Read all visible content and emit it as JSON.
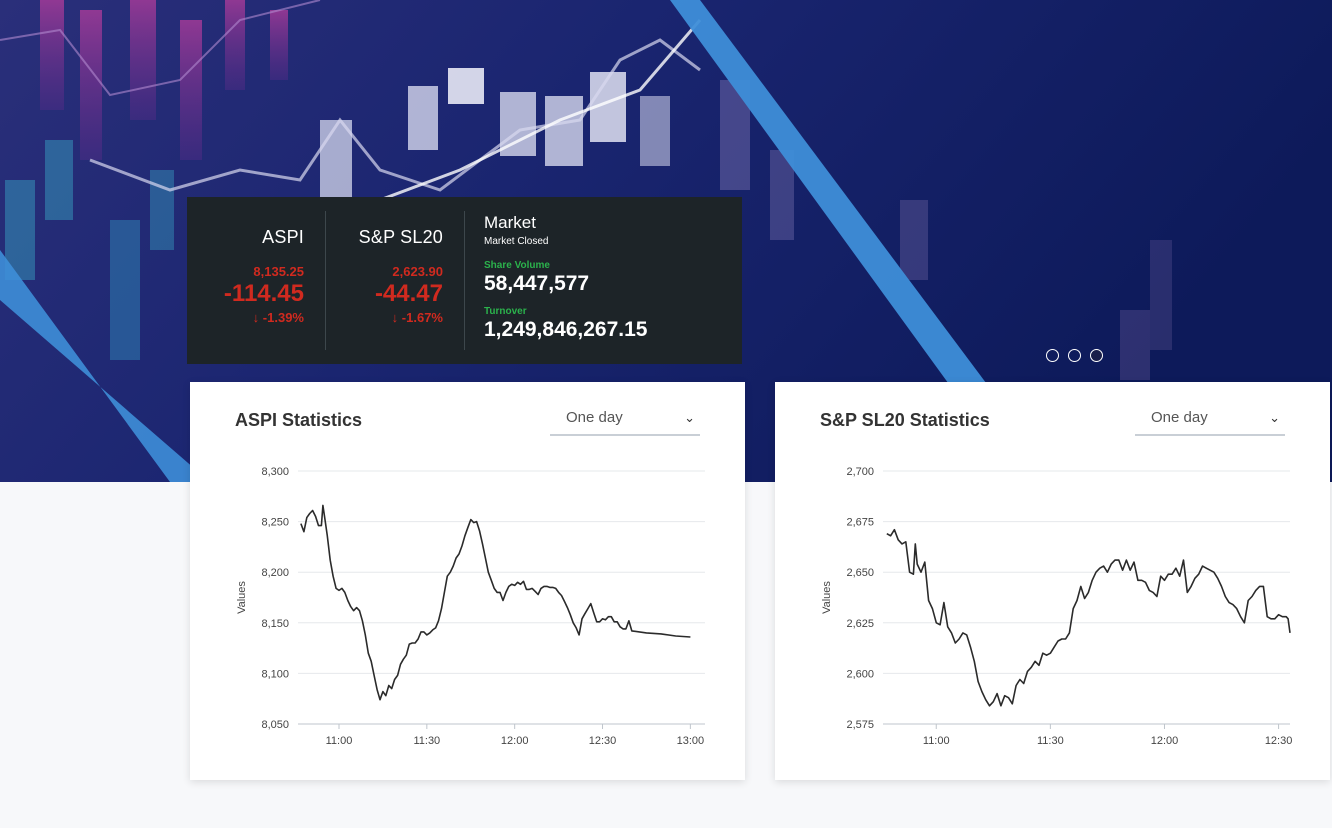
{
  "ticker": {
    "indices": [
      {
        "name": "ASPI",
        "value": "8,135.25",
        "change": "-114.45",
        "percent": "-1.39%",
        "arrow": "↓"
      },
      {
        "name": "S&P SL20",
        "value": "2,623.90",
        "change": "-44.47",
        "percent": "-1.67%",
        "arrow": "↓"
      }
    ],
    "market": {
      "title": "Market",
      "status": "Market Closed",
      "share_volume_label": "Share Volume",
      "share_volume": "58,447,577",
      "turnover_label": "Turnover",
      "turnover": "1,249,846,267.15"
    }
  },
  "colors": {
    "negative": "#d02a1f",
    "positive_label": "#2bb24c",
    "ticker_bg": "#1d2428"
  },
  "carousel": {
    "slides": 3,
    "active": 3
  },
  "cards": [
    {
      "title": "ASPI Statistics",
      "period": "One day",
      "chevron": "chevron-down-icon"
    },
    {
      "title": "S&P SL20 Statistics",
      "period": "One day",
      "chevron": "chevron-down-icon"
    }
  ],
  "chart_data": [
    {
      "type": "line",
      "title": "ASPI Statistics",
      "ylabel": "Values",
      "xlabel": "",
      "ylim": [
        8050,
        8300
      ],
      "yticks": [
        "8,300",
        "8,250",
        "8,200",
        "8,150",
        "8,100",
        "8,050"
      ],
      "ytick_values": [
        8300,
        8250,
        8200,
        8150,
        8100,
        8050
      ],
      "xticks": [
        "11:00",
        "11:30",
        "12:00",
        "12:30",
        "13:00"
      ],
      "xtick_values": [
        660,
        690,
        720,
        750,
        780
      ],
      "xlim": [
        646,
        785
      ],
      "grid": true,
      "series": [
        {
          "values": [
            [
              647,
              8248
            ],
            [
              648,
              8240
            ],
            [
              649,
              8254
            ],
            [
              650,
              8258
            ],
            [
              651,
              8261
            ],
            [
              652,
              8255
            ],
            [
              653,
              8246
            ],
            [
              654,
              8246
            ],
            [
              654.5,
              8266
            ],
            [
              655,
              8256
            ],
            [
              656,
              8236
            ],
            [
              657,
              8212
            ],
            [
              658,
              8196
            ],
            [
              659,
              8184
            ],
            [
              660,
              8182
            ],
            [
              661,
              8184
            ],
            [
              662,
              8180
            ],
            [
              663,
              8172
            ],
            [
              664,
              8166
            ],
            [
              665,
              8162
            ],
            [
              666,
              8165
            ],
            [
              667,
              8162
            ],
            [
              668,
              8152
            ],
            [
              669,
              8138
            ],
            [
              670,
              8120
            ],
            [
              671,
              8112
            ],
            [
              672,
              8098
            ],
            [
              673,
              8084
            ],
            [
              674,
              8074
            ],
            [
              675,
              8082
            ],
            [
              676,
              8078
            ],
            [
              677,
              8088
            ],
            [
              678,
              8085
            ],
            [
              679,
              8094
            ],
            [
              680,
              8098
            ],
            [
              681,
              8109
            ],
            [
              682,
              8114
            ],
            [
              683,
              8118
            ],
            [
              684,
              8129
            ],
            [
              685,
              8130
            ],
            [
              686,
              8130
            ],
            [
              687,
              8134
            ],
            [
              688,
              8141
            ],
            [
              689,
              8141
            ],
            [
              690,
              8138
            ],
            [
              691,
              8140
            ],
            [
              692,
              8143
            ],
            [
              693,
              8145
            ],
            [
              694,
              8152
            ],
            [
              695,
              8164
            ],
            [
              696,
              8180
            ],
            [
              697,
              8196
            ],
            [
              698,
              8200
            ],
            [
              699,
              8206
            ],
            [
              700,
              8214
            ],
            [
              701,
              8218
            ],
            [
              702,
              8226
            ],
            [
              703,
              8236
            ],
            [
              704,
              8244
            ],
            [
              705,
              8252
            ],
            [
              706,
              8249
            ],
            [
              707,
              8250
            ],
            [
              708,
              8241
            ],
            [
              709,
              8228
            ],
            [
              710,
              8214
            ],
            [
              711,
              8200
            ],
            [
              712,
              8192
            ],
            [
              713,
              8184
            ],
            [
              714,
              8180
            ],
            [
              715,
              8180
            ],
            [
              716,
              8172
            ],
            [
              717,
              8180
            ],
            [
              718,
              8186
            ],
            [
              719,
              8188
            ],
            [
              720,
              8187
            ],
            [
              721,
              8190
            ],
            [
              722,
              8188
            ],
            [
              723,
              8191
            ],
            [
              724,
              8183
            ],
            [
              725,
              8183
            ],
            [
              726,
              8184
            ],
            [
              727,
              8181
            ],
            [
              728,
              8178
            ],
            [
              729,
              8184
            ],
            [
              730,
              8186
            ],
            [
              731,
              8186
            ],
            [
              732,
              8185
            ],
            [
              733,
              8185
            ],
            [
              734,
              8184
            ],
            [
              735,
              8180
            ],
            [
              736,
              8177
            ],
            [
              737,
              8171
            ],
            [
              738,
              8165
            ],
            [
              739,
              8158
            ],
            [
              740,
              8150
            ],
            [
              741,
              8145
            ],
            [
              742,
              8138
            ],
            [
              743,
              8154
            ],
            [
              744,
              8159
            ],
            [
              745,
              8164
            ],
            [
              746,
              8169
            ],
            [
              747,
              8160
            ],
            [
              748,
              8151
            ],
            [
              749,
              8151
            ],
            [
              750,
              8154
            ],
            [
              751,
              8153
            ],
            [
              752,
              8156
            ],
            [
              753,
              8156
            ],
            [
              754,
              8151
            ],
            [
              755,
              8151
            ],
            [
              756,
              8146
            ],
            [
              757,
              8144
            ],
            [
              758,
              8144
            ],
            [
              759,
              8152
            ],
            [
              760,
              8142
            ],
            [
              765,
              8140
            ],
            [
              770,
              8139
            ],
            [
              775,
              8137
            ],
            [
              780,
              8136
            ]
          ]
        }
      ]
    },
    {
      "type": "line",
      "title": "S&P SL20 Statistics",
      "ylabel": "Values",
      "xlabel": "",
      "ylim": [
        2575,
        2700
      ],
      "yticks": [
        "2,700",
        "2,675",
        "2,650",
        "2,625",
        "2,600",
        "2,575"
      ],
      "ytick_values": [
        2700,
        2675,
        2650,
        2625,
        2600,
        2575
      ],
      "xticks": [
        "11:00",
        "11:30",
        "12:00",
        "12:30"
      ],
      "xtick_values": [
        660,
        690,
        720,
        750
      ],
      "xlim": [
        646,
        753
      ],
      "grid": true,
      "series": [
        {
          "values": [
            [
              647,
              2669
            ],
            [
              648,
              2668
            ],
            [
              649,
              2671
            ],
            [
              650,
              2666
            ],
            [
              651,
              2664
            ],
            [
              652,
              2665
            ],
            [
              653,
              2650
            ],
            [
              654,
              2649
            ],
            [
              654.5,
              2664
            ],
            [
              655,
              2654
            ],
            [
              656,
              2650
            ],
            [
              657,
              2655
            ],
            [
              658,
              2636
            ],
            [
              659,
              2632
            ],
            [
              660,
              2625
            ],
            [
              661,
              2624
            ],
            [
              662,
              2635
            ],
            [
              663,
              2623
            ],
            [
              664,
              2620
            ],
            [
              665,
              2615
            ],
            [
              666,
              2617
            ],
            [
              667,
              2620
            ],
            [
              668,
              2619
            ],
            [
              669,
              2613
            ],
            [
              670,
              2606
            ],
            [
              671,
              2596
            ],
            [
              672,
              2591
            ],
            [
              673,
              2587
            ],
            [
              674,
              2584
            ],
            [
              675,
              2586
            ],
            [
              676,
              2590
            ],
            [
              677,
              2584
            ],
            [
              678,
              2589
            ],
            [
              679,
              2588
            ],
            [
              680,
              2585
            ],
            [
              681,
              2594
            ],
            [
              682,
              2597
            ],
            [
              683,
              2595
            ],
            [
              684,
              2601
            ],
            [
              685,
              2603
            ],
            [
              686,
              2606
            ],
            [
              687,
              2604
            ],
            [
              688,
              2610
            ],
            [
              689,
              2609
            ],
            [
              690,
              2610
            ],
            [
              691,
              2613
            ],
            [
              692,
              2616
            ],
            [
              693,
              2617
            ],
            [
              694,
              2617
            ],
            [
              695,
              2620
            ],
            [
              696,
              2632
            ],
            [
              697,
              2636
            ],
            [
              698,
              2643
            ],
            [
              699,
              2637
            ],
            [
              700,
              2640
            ],
            [
              701,
              2646
            ],
            [
              702,
              2650
            ],
            [
              703,
              2652
            ],
            [
              704,
              2653
            ],
            [
              705,
              2650
            ],
            [
              706,
              2654
            ],
            [
              707,
              2656
            ],
            [
              708,
              2656
            ],
            [
              709,
              2651
            ],
            [
              710,
              2656
            ],
            [
              711,
              2651
            ],
            [
              712,
              2655
            ],
            [
              713,
              2646
            ],
            [
              714,
              2646
            ],
            [
              715,
              2645
            ],
            [
              716,
              2641
            ],
            [
              717,
              2640
            ],
            [
              718,
              2638
            ],
            [
              719,
              2648
            ],
            [
              720,
              2646
            ],
            [
              721,
              2649
            ],
            [
              722,
              2649
            ],
            [
              723,
              2652
            ],
            [
              724,
              2648
            ],
            [
              725,
              2656
            ],
            [
              726,
              2640
            ],
            [
              727,
              2643
            ],
            [
              728,
              2647
            ],
            [
              729,
              2649
            ],
            [
              730,
              2653
            ],
            [
              731,
              2652
            ],
            [
              732,
              2651
            ],
            [
              733,
              2650
            ],
            [
              734,
              2647
            ],
            [
              735,
              2643
            ],
            [
              736,
              2638
            ],
            [
              737,
              2635
            ],
            [
              738,
              2634
            ],
            [
              739,
              2632
            ],
            [
              740,
              2628
            ],
            [
              741,
              2625
            ],
            [
              742,
              2636
            ],
            [
              743,
              2638
            ],
            [
              744,
              2641
            ],
            [
              745,
              2643
            ],
            [
              746,
              2643
            ],
            [
              747,
              2628
            ],
            [
              748,
              2627
            ],
            [
              749,
              2627
            ],
            [
              750,
              2629
            ],
            [
              751,
              2628
            ],
            [
              752,
              2628
            ],
            [
              752.5,
              2627
            ],
            [
              753,
              2620
            ]
          ]
        }
      ]
    }
  ]
}
